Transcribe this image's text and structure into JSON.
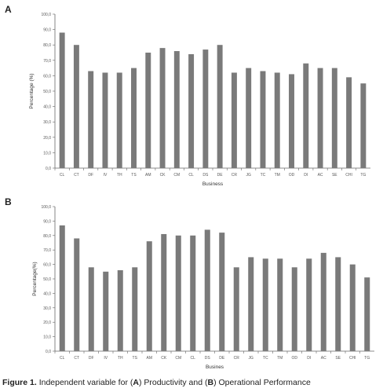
{
  "caption": {
    "prefix": "Figure 1.",
    "t1": "Independent variable for (",
    "a": "A",
    "t2": ") Productivity and (",
    "b": "B",
    "t3": ") Operational Performance"
  },
  "chart_data": [
    {
      "panel": "A",
      "type": "bar",
      "xlabel": "Business",
      "ylabel": "Percentage (%)",
      "ylim": [
        0,
        100
      ],
      "yticks": [
        "0,0",
        "10,0",
        "20,0",
        "30,0",
        "40,0",
        "50,0",
        "60,0",
        "70,0",
        "80,0",
        "90,0",
        "100,0"
      ],
      "grid": false,
      "color": "#7a7a7a",
      "categories": [
        "CL",
        "CT",
        "DF",
        "IV",
        "TH",
        "TS",
        "AM",
        "CK",
        "CM",
        "CL",
        "DS",
        "DE",
        "CR",
        "JG",
        "TC",
        "TM",
        "OD",
        "DI",
        "AC",
        "SE",
        "CHI",
        "TG"
      ],
      "values": [
        88,
        80,
        63,
        62,
        62,
        65,
        75,
        78,
        76,
        74,
        77,
        80,
        62,
        65,
        63,
        62,
        61,
        68,
        65,
        65,
        59,
        55
      ]
    },
    {
      "panel": "B",
      "type": "bar",
      "xlabel": "Busines",
      "ylabel": "Percentage(%)",
      "ylim": [
        0,
        100
      ],
      "yticks": [
        "0,0",
        "10,0",
        "20,0",
        "30,0",
        "40,0",
        "50,0",
        "60,0",
        "70,0",
        "80,0",
        "90,0",
        "100,0"
      ],
      "grid": false,
      "color": "#7a7a7a",
      "categories": [
        "CL",
        "CT",
        "DF",
        "IV",
        "TH",
        "TS",
        "AM",
        "CK",
        "CM",
        "CL",
        "DS",
        "DE",
        "CR",
        "JG",
        "TC",
        "TM",
        "OD",
        "DI",
        "AC",
        "SE",
        "CHI",
        "TG"
      ],
      "values": [
        87,
        78,
        58,
        55,
        56,
        58,
        76,
        81,
        80,
        80,
        84,
        82,
        58,
        65,
        64,
        64,
        58,
        64,
        68,
        65,
        60,
        51
      ]
    }
  ]
}
